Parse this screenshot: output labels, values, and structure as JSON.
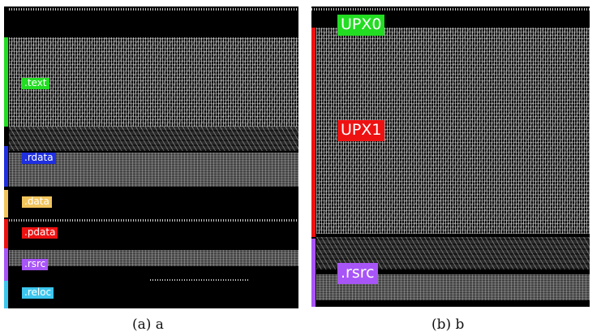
{
  "panel_a": {
    "caption": "(a) a",
    "sections": [
      {
        "label": ".text",
        "color": "#22dd22"
      },
      {
        "label": ".rdata",
        "color": "#1f2fe0"
      },
      {
        "label": ".data",
        "color": "#f2c55c"
      },
      {
        "label": ".pdata",
        "color": "#ee1111"
      },
      {
        "label": ".rsrc",
        "color": "#a855f7"
      },
      {
        "label": ".reloc",
        "color": "#3cc6ee"
      }
    ]
  },
  "panel_b": {
    "caption": "(b) b",
    "sections": [
      {
        "label": "UPX0",
        "color": "#22dd22"
      },
      {
        "label": "UPX1",
        "color": "#ee1111"
      },
      {
        "label": ".rsrc",
        "color": "#a855f7"
      }
    ]
  }
}
